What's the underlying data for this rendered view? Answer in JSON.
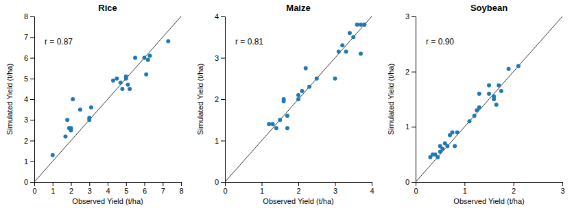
{
  "chart_data": [
    {
      "type": "scatter",
      "title": "Rice",
      "xlabel": "Observed Yield (t/ha)",
      "ylabel": "Simulated Yield (t/ha)",
      "annotations": [
        "r = 0.87"
      ],
      "xlim": [
        0,
        8
      ],
      "ylim": [
        0,
        8
      ],
      "xticks": [
        0,
        1,
        2,
        3,
        4,
        5,
        6,
        7,
        8
      ],
      "yticks": [
        0,
        1,
        2,
        3,
        4,
        5,
        6,
        7,
        8
      ],
      "x": [
        1.0,
        1.7,
        1.8,
        1.9,
        2.0,
        2.0,
        2.1,
        2.5,
        3.0,
        3.0,
        3.1,
        4.3,
        4.5,
        4.7,
        4.8,
        5.0,
        5.0,
        5.1,
        5.2,
        5.5,
        6.0,
        6.1,
        6.2,
        6.3,
        7.3
      ],
      "values": [
        1.3,
        2.2,
        3.0,
        2.6,
        2.5,
        2.6,
        4.0,
        3.5,
        3.1,
        3.0,
        3.6,
        4.9,
        5.0,
        4.8,
        4.5,
        5.0,
        5.1,
        4.7,
        4.5,
        6.0,
        6.0,
        5.2,
        5.9,
        6.1,
        6.8
      ]
    },
    {
      "type": "scatter",
      "title": "Maize",
      "xlabel": "Observed Yield (t/ha)",
      "ylabel": "Simulated Yield (t/ha)",
      "annotations": [
        "r = 0.81"
      ],
      "xlim": [
        0,
        4
      ],
      "ylim": [
        0,
        4
      ],
      "xticks": [
        0,
        1,
        2,
        3,
        4
      ],
      "yticks": [
        0,
        1,
        2,
        3,
        4
      ],
      "x": [
        1.2,
        1.3,
        1.4,
        1.5,
        1.6,
        1.6,
        1.7,
        1.7,
        2.0,
        2.0,
        2.1,
        2.2,
        2.3,
        2.5,
        3.0,
        3.1,
        3.2,
        3.3,
        3.4,
        3.5,
        3.6,
        3.7,
        3.7,
        3.8,
        3.8
      ],
      "values": [
        1.4,
        1.4,
        1.3,
        1.5,
        1.95,
        2.0,
        1.6,
        1.3,
        2.0,
        2.1,
        2.2,
        2.75,
        2.3,
        2.5,
        2.5,
        3.15,
        3.3,
        3.15,
        3.6,
        3.5,
        3.8,
        3.8,
        3.1,
        3.8,
        3.8
      ]
    },
    {
      "type": "scatter",
      "title": "Soybean",
      "xlabel": "Observed Yield (t/ha)",
      "ylabel": "Simulated Yield (t/ha)",
      "annotations": [
        "r = 0.90"
      ],
      "xlim": [
        0,
        3
      ],
      "ylim": [
        0,
        3
      ],
      "xticks": [
        0,
        1,
        2,
        3
      ],
      "yticks": [
        0,
        1,
        2,
        3
      ],
      "x": [
        0.3,
        0.35,
        0.4,
        0.45,
        0.5,
        0.5,
        0.55,
        0.6,
        0.65,
        0.7,
        0.75,
        0.8,
        0.85,
        1.1,
        1.2,
        1.25,
        1.3,
        1.3,
        1.5,
        1.5,
        1.6,
        1.6,
        1.65,
        1.7,
        1.75,
        1.9,
        2.1
      ],
      "values": [
        0.45,
        0.5,
        0.5,
        0.45,
        0.55,
        0.65,
        0.6,
        0.7,
        0.65,
        0.85,
        0.9,
        0.65,
        0.9,
        1.1,
        1.2,
        1.3,
        1.6,
        1.35,
        1.6,
        1.75,
        1.55,
        1.5,
        1.4,
        1.75,
        1.65,
        2.05,
        2.1
      ]
    }
  ]
}
